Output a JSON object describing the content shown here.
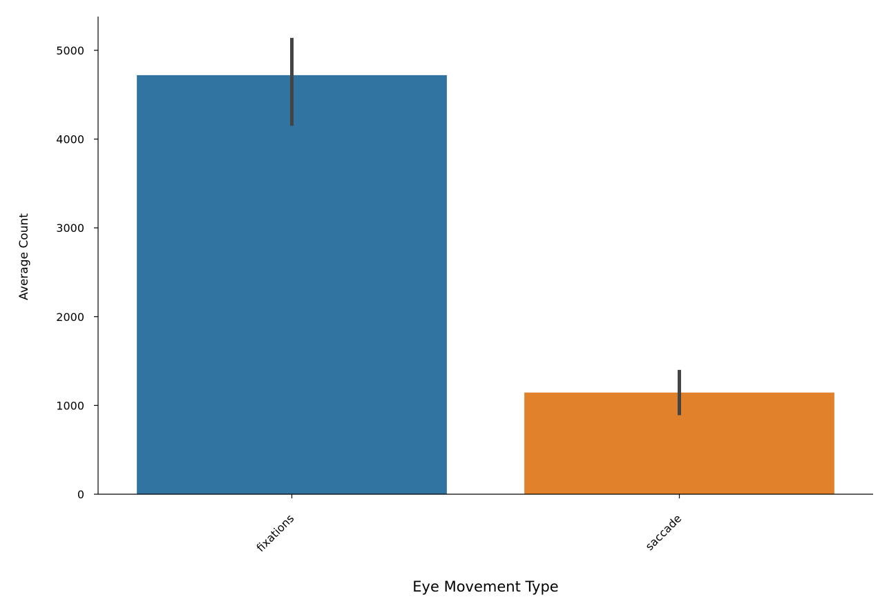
{
  "chart_data": {
    "type": "bar",
    "title": "",
    "xlabel": "Eye Movement Type",
    "ylabel": "Average Count",
    "categories": [
      "fixations",
      "saccade"
    ],
    "values": [
      4720,
      1145
    ],
    "error_bars": [
      {
        "low": 4150,
        "high": 5140
      },
      {
        "low": 890,
        "high": 1400
      }
    ],
    "colors": [
      "#3274a1",
      "#e1812c"
    ],
    "error_bar_color": "#444444",
    "ylim": [
      0,
      5380
    ],
    "yticks": [
      0,
      1000,
      2000,
      3000,
      4000,
      5000
    ],
    "ytick_labels": [
      "0",
      "1000",
      "2000",
      "3000",
      "4000",
      "5000"
    ],
    "grid": false,
    "legend": "none"
  }
}
